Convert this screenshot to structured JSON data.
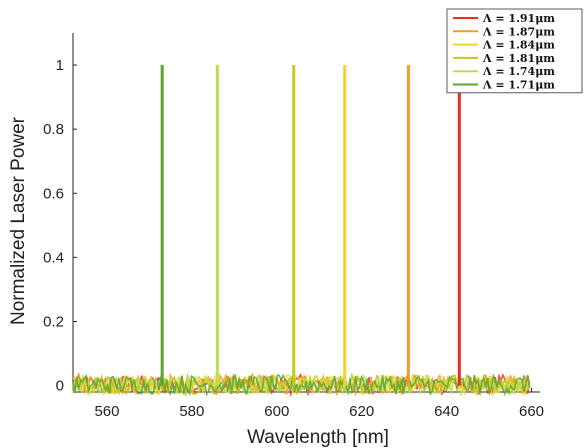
{
  "chart_data": {
    "type": "line",
    "title": "",
    "xlabel": "Wavelength [nm]",
    "ylabel": "Normalized Laser Power",
    "xlim": [
      552,
      662
    ],
    "ylim": [
      -0.02,
      1.1
    ],
    "xticks": [
      560,
      580,
      600,
      620,
      640,
      660
    ],
    "xtick_labels": [
      "560",
      "580",
      "600",
      "620",
      "640",
      "660"
    ],
    "yticks": [
      0,
      0.2,
      0.4,
      0.6,
      0.8,
      1
    ],
    "ytick_labels": [
      "0",
      "0.2",
      "0.4",
      "0.6",
      "0.8",
      "1"
    ],
    "grid": false,
    "legend_position": "top-right",
    "noise_floor_amplitude": 0.06,
    "series": [
      {
        "name": "Λ = 1.91μm",
        "color": "#e8311e",
        "peak_x": 643,
        "peak_y": 1
      },
      {
        "name": "Λ = 1.87μm",
        "color": "#f39a2e",
        "peak_x": 631,
        "peak_y": 1
      },
      {
        "name": "Λ = 1.84μm",
        "color": "#f7d32a",
        "peak_x": 616,
        "peak_y": 1
      },
      {
        "name": "Λ = 1.81μm",
        "color": "#c9c51a",
        "peak_x": 604,
        "peak_y": 1
      },
      {
        "name": "Λ = 1.74μm",
        "color": "#b5e24a",
        "peak_x": 586,
        "peak_y": 1
      },
      {
        "name": "Λ = 1.71μm",
        "color": "#5aa630",
        "peak_x": 573,
        "peak_y": 1
      }
    ]
  }
}
